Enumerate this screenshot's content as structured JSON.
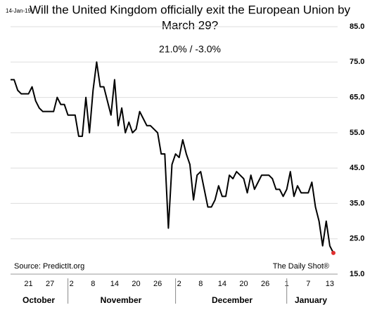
{
  "chart_data": {
    "type": "line",
    "date_stamp": "14-Jan-19",
    "title": [
      "Will the United Kingdom officially exit the European Union by",
      "March 29?"
    ],
    "subtitle": "21.0%  /  -3.0%",
    "source": "Source: PredictIt.org",
    "credit": "The Daily Shot®",
    "months": [
      "October",
      "November",
      "December",
      "January"
    ],
    "categories": [
      null,
      null,
      null,
      null,
      null,
      "21",
      null,
      null,
      null,
      null,
      null,
      "27",
      null,
      null,
      null,
      null,
      null,
      "2",
      null,
      null,
      null,
      null,
      null,
      "8",
      null,
      null,
      null,
      null,
      null,
      "14",
      null,
      null,
      null,
      null,
      null,
      "20",
      null,
      null,
      null,
      null,
      null,
      "26",
      null,
      null,
      null,
      null,
      null,
      "2",
      null,
      null,
      null,
      null,
      null,
      "8",
      null,
      null,
      null,
      null,
      null,
      "14",
      null,
      null,
      null,
      null,
      null,
      "20",
      null,
      null,
      null,
      null,
      null,
      "26",
      null,
      null,
      null,
      null,
      null,
      "1",
      null,
      null,
      null,
      null,
      null,
      "7",
      null,
      null,
      null,
      null,
      null,
      "13",
      null
    ],
    "series": [
      {
        "color": "#000000",
        "end_color": "#e03030",
        "values": [
          70,
          70,
          67,
          66,
          66,
          66,
          68,
          64,
          62,
          61,
          61,
          61,
          61,
          65,
          63,
          63,
          60,
          60,
          60,
          54,
          54,
          65,
          55,
          67,
          75,
          68,
          68,
          64,
          60,
          70,
          57,
          62,
          55,
          58,
          55,
          56,
          61,
          59,
          57,
          57,
          56,
          55,
          49,
          49,
          28,
          46,
          49,
          48,
          53,
          49,
          46,
          36,
          43,
          44,
          39,
          34,
          34,
          36,
          40,
          37,
          37,
          43,
          42,
          44,
          43,
          42,
          38,
          43,
          39,
          41,
          43,
          43,
          43,
          42,
          39,
          39,
          37,
          39,
          44,
          37,
          40,
          38,
          38,
          38,
          41,
          34,
          30,
          23,
          30,
          23,
          21
        ]
      }
    ],
    "ylim": [
      15,
      85
    ],
    "yticks": [
      {
        "value": 15,
        "label": "15.0"
      },
      {
        "value": 25,
        "label": "25.0"
      },
      {
        "value": 35,
        "label": "35.0"
      },
      {
        "value": 45,
        "label": "45.0"
      },
      {
        "value": 55,
        "label": "55.0"
      },
      {
        "value": 65,
        "label": "65.0"
      },
      {
        "value": 75,
        "label": "75.0"
      },
      {
        "value": 85,
        "label": "85.0"
      }
    ],
    "grid": true
  }
}
